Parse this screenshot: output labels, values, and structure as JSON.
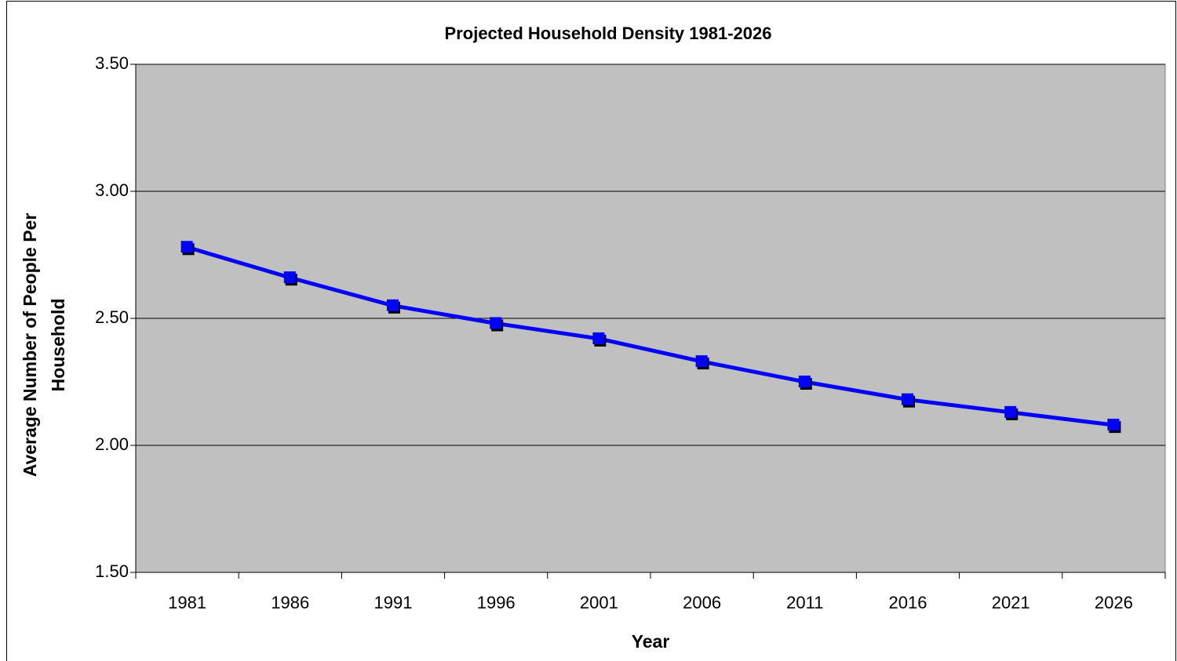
{
  "chart_data": {
    "type": "line",
    "title": "Projected Household Density 1981-2026",
    "xlabel": "Year",
    "ylabel": [
      "Average Number of People Per",
      "Household"
    ],
    "categories": [
      "1981",
      "1986",
      "1991",
      "1996",
      "2001",
      "2006",
      "2011",
      "2016",
      "2021",
      "2026"
    ],
    "series": [
      {
        "color": "#0000ff",
        "values": [
          2.78,
          2.66,
          2.55,
          2.48,
          2.42,
          2.33,
          2.25,
          2.18,
          2.13,
          2.08
        ]
      }
    ],
    "ylim": [
      1.5,
      3.5
    ],
    "yticks": [
      {
        "value": 1.5,
        "label": "1.50"
      },
      {
        "value": 2,
        "label": "2.00"
      },
      {
        "value": 2.5,
        "label": "2.50"
      },
      {
        "value": 3,
        "label": "3.00"
      },
      {
        "value": 3.5,
        "label": "3.50"
      }
    ],
    "grid": true,
    "plot_background": "#c0c0c0"
  }
}
